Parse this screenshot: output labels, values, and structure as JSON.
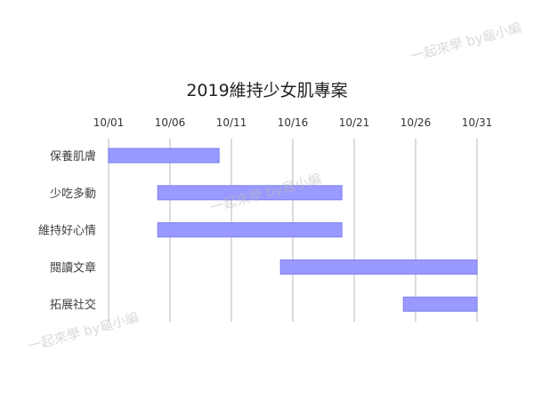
{
  "chart_data": {
    "type": "gantt",
    "title": "2019維持少女肌專案",
    "x_ticks": [
      "10/01",
      "10/06",
      "10/11",
      "10/16",
      "10/21",
      "10/26",
      "10/31"
    ],
    "xlim": [
      "2019-10-01",
      "2019-10-31"
    ],
    "grid": "vertical",
    "bar_color": "#9999ff",
    "tasks": [
      {
        "name": "保養肌膚",
        "start": "10/01",
        "end": "10/10"
      },
      {
        "name": "少吃多動",
        "start": "10/05",
        "end": "10/20"
      },
      {
        "name": "維持好心情",
        "start": "10/05",
        "end": "10/20"
      },
      {
        "name": "閱讀文章",
        "start": "10/15",
        "end": "10/31"
      },
      {
        "name": "拓展社交",
        "start": "10/25",
        "end": "10/31"
      }
    ]
  },
  "watermark": "一起來學 by龜小編"
}
